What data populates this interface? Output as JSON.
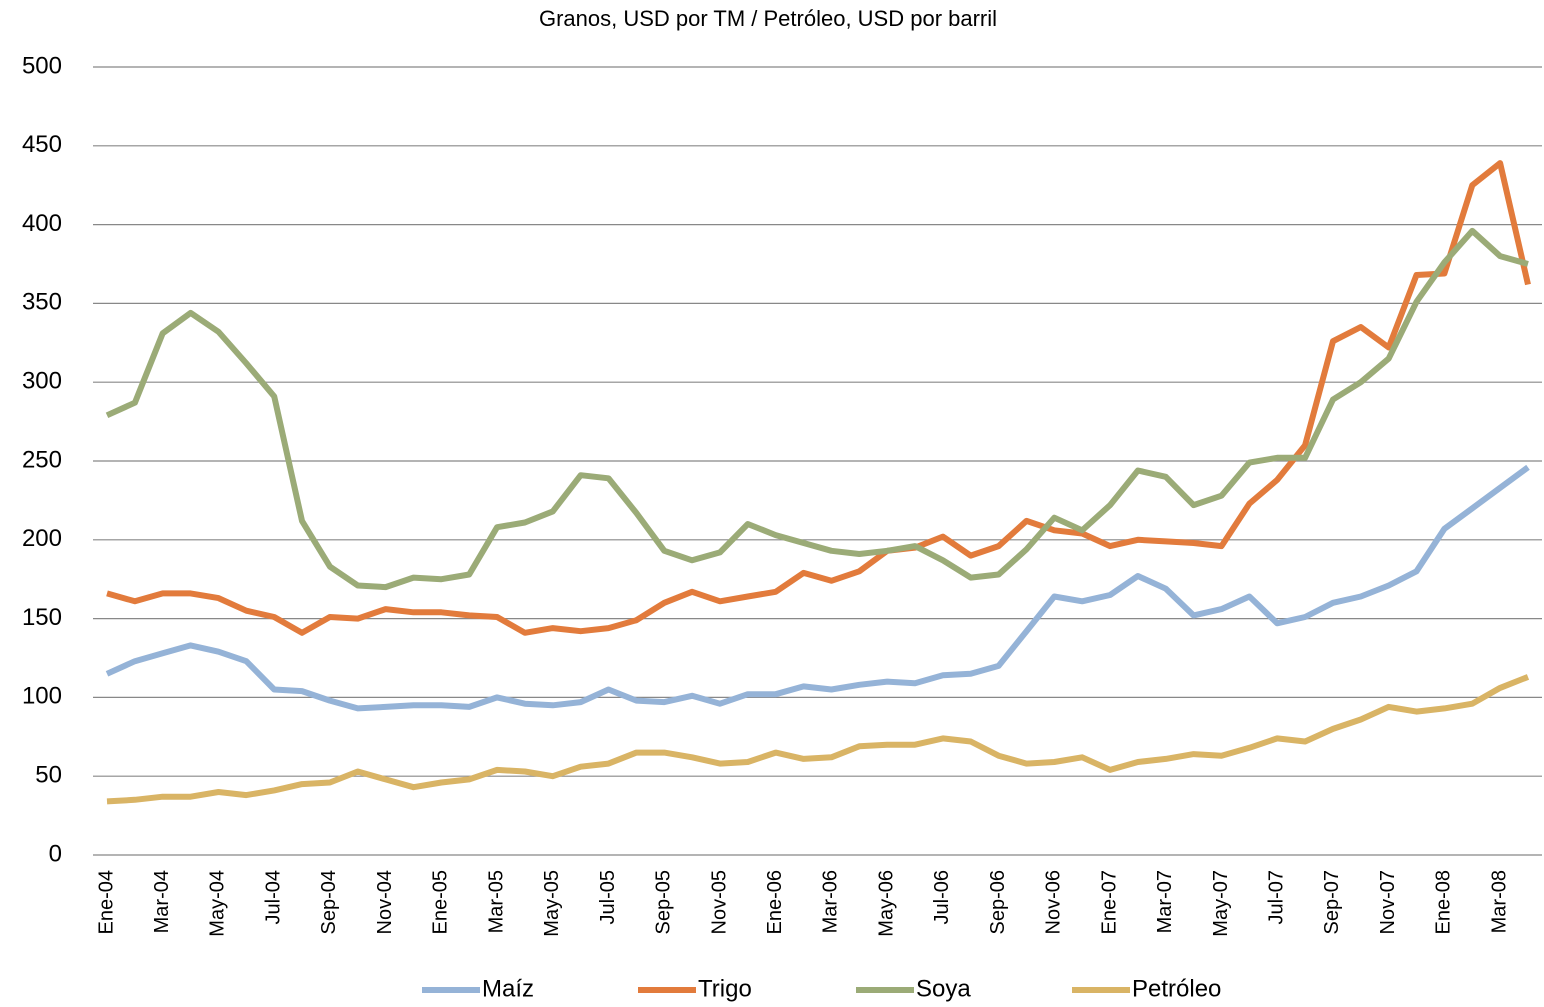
{
  "chart_data": {
    "type": "line",
    "title": "Granos, USD por TM / Petróleo, USD por barril",
    "categories": [
      "Ene-04",
      null,
      "Mar-04",
      null,
      "May-04",
      null,
      "Jul-04",
      null,
      "Sep-04",
      null,
      "Nov-04",
      null,
      "Ene-05",
      null,
      "Mar-05",
      null,
      "May-05",
      null,
      "Jul-05",
      null,
      "Sep-05",
      null,
      "Nov-05",
      null,
      "Ene-06",
      null,
      "Mar-06",
      null,
      "May-06",
      null,
      "Jul-06",
      null,
      "Sep-06",
      null,
      "Nov-06",
      null,
      "Ene-07",
      null,
      "Mar-07",
      null,
      "May-07",
      null,
      "Jul-07",
      null,
      "Sep-07",
      null,
      "Nov-07",
      null,
      "Ene-08",
      null,
      "Mar-08",
      null
    ],
    "series": [
      {
        "name": "Maíz",
        "color": "#95b3d7",
        "values": [
          115,
          123,
          128,
          133,
          129,
          123,
          105,
          104,
          98,
          93,
          94,
          95,
          95,
          94,
          100,
          96,
          95,
          97,
          105,
          98,
          97,
          101,
          96,
          102,
          102,
          107,
          105,
          108,
          110,
          109,
          114,
          115,
          120,
          142,
          164,
          161,
          165,
          177,
          169,
          152,
          156,
          164,
          147,
          151,
          160,
          164,
          171,
          180,
          207,
          220,
          233,
          246
        ]
      },
      {
        "name": "Trigo",
        "color": "#e27b3c",
        "values": [
          166,
          161,
          166,
          166,
          163,
          155,
          151,
          141,
          151,
          150,
          156,
          154,
          154,
          152,
          151,
          141,
          144,
          142,
          144,
          149,
          160,
          167,
          161,
          164,
          167,
          179,
          174,
          180,
          193,
          195,
          202,
          190,
          196,
          212,
          206,
          204,
          196,
          200,
          199,
          198,
          196,
          223,
          238,
          260,
          326,
          335,
          322,
          368,
          369,
          425,
          439,
          362
        ]
      },
      {
        "name": "Soya",
        "color": "#9bab77",
        "values": [
          279,
          287,
          331,
          344,
          332,
          312,
          291,
          212,
          183,
          171,
          170,
          176,
          175,
          178,
          208,
          211,
          218,
          241,
          239,
          217,
          193,
          187,
          192,
          210,
          203,
          198,
          193,
          191,
          193,
          196,
          187,
          176,
          178,
          194,
          214,
          206,
          222,
          244,
          240,
          222,
          228,
          249,
          252,
          252,
          289,
          300,
          315,
          351,
          376,
          396,
          380,
          375
        ]
      },
      {
        "name": "Petróleo",
        "color": "#d9b465",
        "values": [
          34,
          35,
          37,
          37,
          40,
          38,
          41,
          45,
          46,
          53,
          48,
          43,
          46,
          48,
          54,
          53,
          50,
          56,
          58,
          65,
          65,
          62,
          58,
          59,
          65,
          61,
          62,
          69,
          70,
          70,
          74,
          72,
          63,
          58,
          59,
          62,
          54,
          59,
          61,
          64,
          63,
          68,
          74,
          72,
          80,
          86,
          94,
          91,
          93,
          96,
          106,
          113
        ]
      }
    ],
    "ylim": [
      0,
      500
    ],
    "yticks": [
      0,
      50,
      100,
      150,
      200,
      250,
      300,
      350,
      400,
      450,
      500
    ],
    "grid": true
  }
}
